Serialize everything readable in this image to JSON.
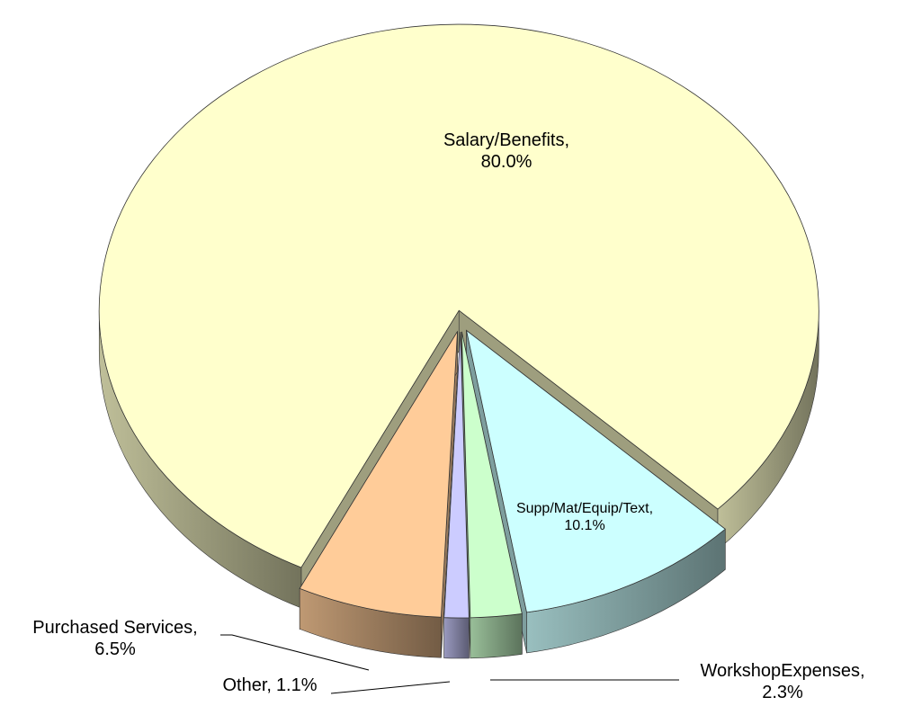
{
  "chart_data": {
    "type": "pie3d",
    "categories": [
      "Salary/Benefits,",
      "Supp/Mat/Equip/Text,",
      "WorkshopExpenses,",
      "Other,",
      "Purchased Services,"
    ],
    "values": [
      80.0,
      10.1,
      2.3,
      1.1,
      6.5
    ],
    "value_labels": [
      "80.0%",
      "10.1%",
      "2.3%",
      "1.1%",
      "6.5%"
    ],
    "colors": [
      "#ffffcc",
      "#ccffff",
      "#ccffcc",
      "#ccccff",
      "#ffcc99"
    ]
  }
}
